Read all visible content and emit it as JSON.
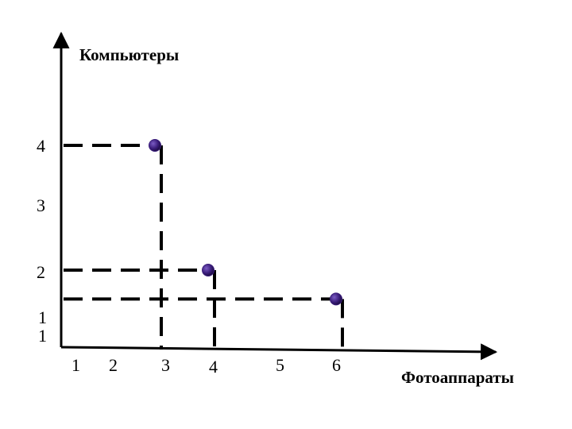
{
  "chart_data": {
    "type": "scatter",
    "title": "",
    "xlabel": "Фотоаппараты",
    "ylabel": "Компьютеры",
    "x_ticks": [
      "1",
      "2",
      "3",
      "4",
      "5",
      "6"
    ],
    "y_ticks": [
      "1",
      "1",
      "2",
      "3",
      "4"
    ],
    "points": [
      {
        "x": 2.8,
        "y": 4
      },
      {
        "x": 3.9,
        "y": 2
      },
      {
        "x": 6,
        "y": 1.3
      }
    ],
    "point_color": "#3a1d7a",
    "line_color": "#000000",
    "grid": false,
    "legend": "none"
  }
}
